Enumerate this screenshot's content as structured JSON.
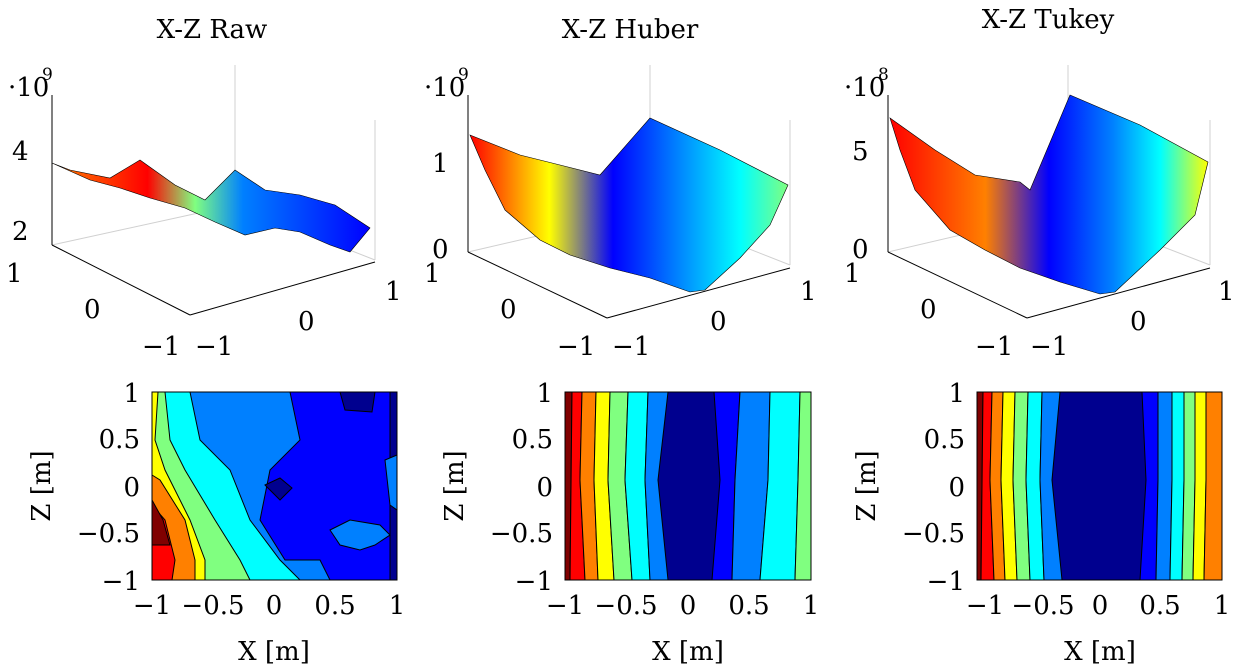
{
  "chart_data": [
    {
      "type": "surface",
      "title": "X-Z Raw",
      "z_multiplier": "·10",
      "z_exponent": "9",
      "z_ticks": [
        "4",
        "2"
      ],
      "x_ticks": [
        "−1",
        "0",
        "1"
      ],
      "y_ticks": [
        "1",
        "0",
        "−1"
      ]
    },
    {
      "type": "surface",
      "title": "X-Z Huber",
      "z_multiplier": "·10",
      "z_exponent": "9",
      "z_ticks": [
        "1",
        "0"
      ],
      "x_ticks": [
        "−1",
        "0",
        "1"
      ],
      "y_ticks": [
        "1",
        "0",
        "−1"
      ]
    },
    {
      "type": "surface",
      "title": "X-Z Tukey",
      "z_multiplier": "·10",
      "z_exponent": "8",
      "z_ticks": [
        "5",
        "0"
      ],
      "x_ticks": [
        "−1",
        "0",
        "1"
      ],
      "y_ticks": [
        "1",
        "0",
        "−1"
      ]
    },
    {
      "type": "contour",
      "xlabel": "X [m]",
      "ylabel": "Z [m]",
      "xlim": [
        -1,
        1
      ],
      "ylim": [
        -1,
        1
      ],
      "x_ticks": [
        "−1",
        "−0.5",
        "0",
        "0.5",
        "1"
      ],
      "y_ticks": [
        "1",
        "0.5",
        "0",
        "−0.5",
        "−1"
      ]
    },
    {
      "type": "contour",
      "xlabel": "X [m]",
      "ylabel": "Z [m]",
      "xlim": [
        -1,
        1
      ],
      "ylim": [
        -1,
        1
      ],
      "x_ticks": [
        "−1",
        "−0.5",
        "0",
        "0.5",
        "1"
      ],
      "y_ticks": [
        "1",
        "0.5",
        "0",
        "−0.5",
        "−1"
      ]
    },
    {
      "type": "contour",
      "xlabel": "X [m]",
      "ylabel": "Z [m]",
      "xlim": [
        -1,
        1
      ],
      "ylim": [
        -1,
        1
      ],
      "x_ticks": [
        "−1",
        "−0.5",
        "0",
        "0.5",
        "1"
      ],
      "y_ticks": [
        "1",
        "0.5",
        "0",
        "−0.5",
        "−1"
      ]
    }
  ],
  "colormap": [
    "#00008f",
    "#0000ff",
    "#0080ff",
    "#00ffff",
    "#80ff80",
    "#ffff00",
    "#ff8000",
    "#ff0000",
    "#800000"
  ]
}
